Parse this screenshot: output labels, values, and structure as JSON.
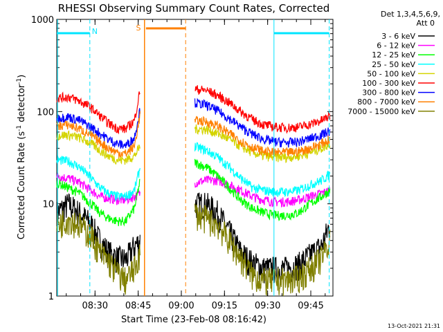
{
  "chart_data": {
    "type": "line",
    "title": "RHESSI Observing Summary Count Rates, Corrected",
    "xlabel": "Start Time (23-Feb-08 08:16:42)",
    "ylabel_main": "Corrected Count Rate (s",
    "ylabel_sup1": "-1",
    "ylabel_mid": " detector",
    "ylabel_sup2": "-1",
    "ylabel_end": ")",
    "yscale": "log",
    "ylim": [
      1,
      1000
    ],
    "xlim_minutes": [
      0,
      96
    ],
    "x_ticks": [
      "08:30",
      "08:45",
      "09:00",
      "09:15",
      "09:30",
      "09:45"
    ],
    "y_ticks": [
      "1",
      "10",
      "100",
      "1000"
    ],
    "legend_header": [
      "Det 1,3,4,5,6,9,",
      "Att 0"
    ],
    "timestamp": "13-Oct-2021 21:31",
    "annotations": {
      "night_label": "N",
      "saa_label": "S"
    },
    "series": [
      {
        "name": "3 - 6 keV",
        "color": "#000000",
        "pre": [
          [
            0,
            8
          ],
          [
            4,
            10
          ],
          [
            8,
            8
          ],
          [
            12,
            6
          ],
          [
            15,
            4
          ],
          [
            18,
            3
          ],
          [
            21,
            2.6
          ],
          [
            24,
            2.5
          ],
          [
            27,
            3.5
          ],
          [
            29,
            4
          ]
        ],
        "post": [
          [
            48,
            10
          ],
          [
            52,
            10
          ],
          [
            56,
            8
          ],
          [
            60,
            5
          ],
          [
            64,
            3
          ],
          [
            68,
            2.3
          ],
          [
            72,
            2
          ],
          [
            76,
            2
          ],
          [
            80,
            2
          ],
          [
            84,
            2.2
          ],
          [
            88,
            2.8
          ],
          [
            92,
            3.5
          ],
          [
            95,
            6
          ]
        ]
      },
      {
        "name": "6 - 12 keV",
        "color": "#ff00ff",
        "pre": [
          [
            0,
            20
          ],
          [
            4,
            19
          ],
          [
            8,
            17
          ],
          [
            12,
            14
          ],
          [
            15,
            12
          ],
          [
            18,
            11.5
          ],
          [
            21,
            11
          ],
          [
            24,
            11
          ],
          [
            27,
            12
          ],
          [
            29,
            13
          ]
        ],
        "post": [
          [
            48,
            17
          ],
          [
            52,
            18
          ],
          [
            56,
            18
          ],
          [
            60,
            16
          ],
          [
            64,
            14
          ],
          [
            68,
            12
          ],
          [
            72,
            11
          ],
          [
            76,
            10.5
          ],
          [
            80,
            10.5
          ],
          [
            84,
            11
          ],
          [
            88,
            12
          ],
          [
            92,
            13
          ],
          [
            95,
            14
          ]
        ]
      },
      {
        "name": "12 - 25 keV",
        "color": "#00ff00",
        "pre": [
          [
            0,
            17
          ],
          [
            4,
            15
          ],
          [
            8,
            13
          ],
          [
            12,
            10
          ],
          [
            15,
            8
          ],
          [
            18,
            7
          ],
          [
            21,
            6.5
          ],
          [
            24,
            6.5
          ],
          [
            27,
            9
          ],
          [
            29,
            18
          ]
        ],
        "post": [
          [
            48,
            28
          ],
          [
            52,
            25
          ],
          [
            56,
            20
          ],
          [
            60,
            15
          ],
          [
            64,
            11
          ],
          [
            68,
            9
          ],
          [
            72,
            8
          ],
          [
            76,
            7.5
          ],
          [
            80,
            7.5
          ],
          [
            84,
            8
          ],
          [
            88,
            10
          ],
          [
            92,
            12
          ],
          [
            95,
            14
          ]
        ]
      },
      {
        "name": "25 - 50 keV",
        "color": "#00ffff",
        "pre": [
          [
            0,
            30
          ],
          [
            4,
            29
          ],
          [
            8,
            25
          ],
          [
            12,
            19
          ],
          [
            15,
            15
          ],
          [
            18,
            13
          ],
          [
            21,
            12
          ],
          [
            24,
            12
          ],
          [
            27,
            14
          ],
          [
            29,
            25
          ]
        ],
        "post": [
          [
            48,
            42
          ],
          [
            52,
            38
          ],
          [
            56,
            32
          ],
          [
            60,
            25
          ],
          [
            64,
            19
          ],
          [
            68,
            15
          ],
          [
            72,
            14
          ],
          [
            76,
            13.5
          ],
          [
            80,
            13.5
          ],
          [
            84,
            14
          ],
          [
            88,
            16
          ],
          [
            92,
            18
          ],
          [
            95,
            21
          ]
        ]
      },
      {
        "name": "50 - 100 keV",
        "color": "#d4d400",
        "pre": [
          [
            0,
            55
          ],
          [
            4,
            56
          ],
          [
            8,
            52
          ],
          [
            12,
            45
          ],
          [
            15,
            38
          ],
          [
            18,
            33
          ],
          [
            21,
            30
          ],
          [
            24,
            30
          ],
          [
            27,
            33
          ],
          [
            29,
            42
          ]
        ],
        "post": [
          [
            48,
            65
          ],
          [
            52,
            64
          ],
          [
            56,
            58
          ],
          [
            60,
            50
          ],
          [
            64,
            42
          ],
          [
            68,
            36
          ],
          [
            72,
            33
          ],
          [
            76,
            32
          ],
          [
            80,
            32
          ],
          [
            84,
            33
          ],
          [
            88,
            36
          ],
          [
            92,
            40
          ],
          [
            95,
            45
          ]
        ]
      },
      {
        "name": "100 - 300 keV",
        "color": "#ff0000",
        "pre": [
          [
            0,
            140
          ],
          [
            4,
            145
          ],
          [
            8,
            130
          ],
          [
            12,
            110
          ],
          [
            15,
            90
          ],
          [
            18,
            75
          ],
          [
            21,
            66
          ],
          [
            24,
            65
          ],
          [
            27,
            80
          ],
          [
            29,
            175
          ]
        ],
        "post": [
          [
            48,
            175
          ],
          [
            52,
            170
          ],
          [
            56,
            150
          ],
          [
            60,
            125
          ],
          [
            64,
            100
          ],
          [
            68,
            82
          ],
          [
            72,
            72
          ],
          [
            76,
            68
          ],
          [
            80,
            67
          ],
          [
            84,
            68
          ],
          [
            88,
            73
          ],
          [
            92,
            80
          ],
          [
            95,
            90
          ]
        ]
      },
      {
        "name": "300 - 800 keV",
        "color": "#0000ff",
        "pre": [
          [
            0,
            85
          ],
          [
            4,
            88
          ],
          [
            8,
            80
          ],
          [
            12,
            68
          ],
          [
            15,
            58
          ],
          [
            18,
            50
          ],
          [
            21,
            45
          ],
          [
            24,
            43
          ],
          [
            27,
            52
          ],
          [
            29,
            110
          ]
        ],
        "post": [
          [
            48,
            125
          ],
          [
            52,
            118
          ],
          [
            56,
            102
          ],
          [
            60,
            84
          ],
          [
            64,
            68
          ],
          [
            68,
            57
          ],
          [
            72,
            50
          ],
          [
            76,
            47
          ],
          [
            80,
            46
          ],
          [
            84,
            47
          ],
          [
            88,
            51
          ],
          [
            92,
            56
          ],
          [
            95,
            62
          ]
        ]
      },
      {
        "name": "800 - 7000 keV",
        "color": "#ff8000",
        "pre": [
          [
            0,
            70
          ],
          [
            4,
            72
          ],
          [
            8,
            65
          ],
          [
            12,
            55
          ],
          [
            15,
            47
          ],
          [
            18,
            40
          ],
          [
            21,
            36
          ],
          [
            24,
            35
          ],
          [
            27,
            42
          ],
          [
            29,
            95
          ]
        ],
        "post": [
          [
            48,
            80
          ],
          [
            52,
            78
          ],
          [
            56,
            70
          ],
          [
            60,
            58
          ],
          [
            64,
            48
          ],
          [
            68,
            41
          ],
          [
            72,
            37
          ],
          [
            76,
            36
          ],
          [
            80,
            36
          ],
          [
            84,
            37
          ],
          [
            88,
            40
          ],
          [
            92,
            45
          ],
          [
            95,
            50
          ]
        ]
      },
      {
        "name": "7000 - 15000 keV",
        "color": "#808000",
        "pre": [
          [
            0,
            6
          ],
          [
            4,
            7
          ],
          [
            8,
            6
          ],
          [
            12,
            4.5
          ],
          [
            15,
            3
          ],
          [
            18,
            2.4
          ],
          [
            21,
            1.8
          ],
          [
            24,
            1.5
          ],
          [
            27,
            2
          ],
          [
            29,
            3
          ]
        ],
        "post": [
          [
            48,
            8
          ],
          [
            52,
            7
          ],
          [
            56,
            6
          ],
          [
            60,
            4
          ],
          [
            64,
            2.6
          ],
          [
            68,
            1.7
          ],
          [
            72,
            1.5
          ],
          [
            76,
            1.5
          ],
          [
            80,
            1.5
          ],
          [
            84,
            1.6
          ],
          [
            88,
            2
          ],
          [
            92,
            2.6
          ],
          [
            95,
            4
          ]
        ]
      }
    ]
  }
}
